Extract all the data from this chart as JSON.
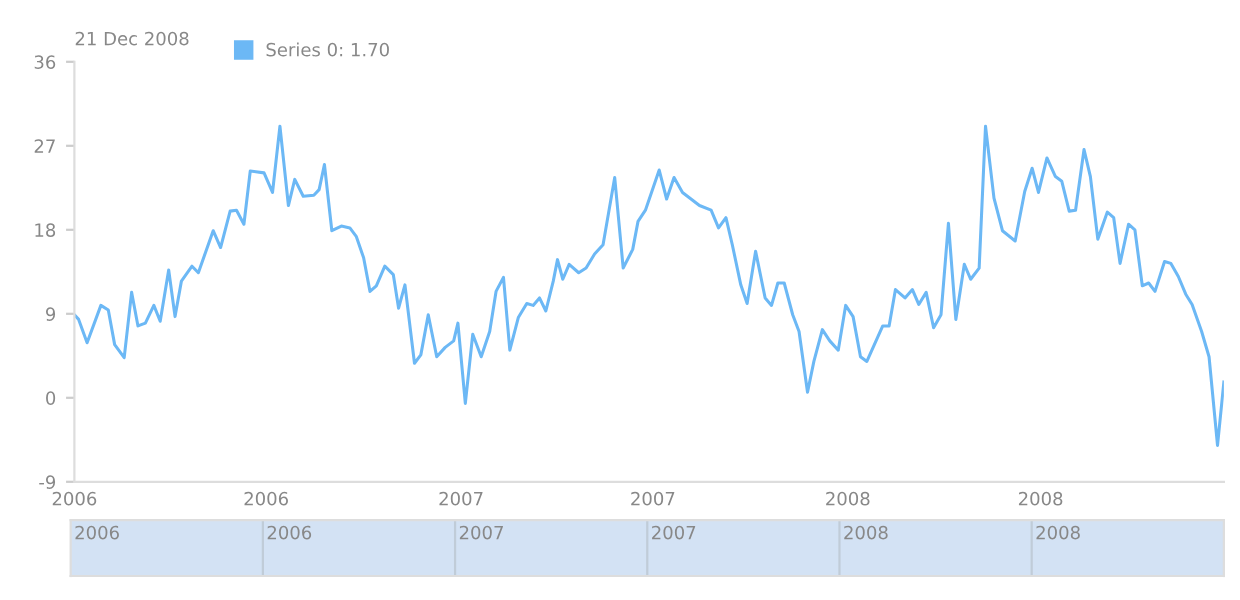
{
  "chart_data": [
    {
      "type": "line",
      "title": "21 Dec 2008",
      "x": [
        "2006-01-01",
        "2006-01-05",
        "2006-01-13",
        "2006-01-26",
        "2006-02-02",
        "2006-02-08",
        "2006-02-17",
        "2006-02-24",
        "2006-03-02",
        "2006-03-09",
        "2006-03-17",
        "2006-03-23",
        "2006-03-31",
        "2006-04-06",
        "2006-04-12",
        "2006-04-22",
        "2006-04-28",
        "2006-05-12",
        "2006-05-19",
        "2006-05-28",
        "2006-06-03",
        "2006-06-10",
        "2006-06-16",
        "2006-06-29",
        "2006-07-07",
        "2006-07-14",
        "2006-07-22",
        "2006-07-28",
        "2006-08-05",
        "2006-08-15",
        "2006-08-20",
        "2006-08-25",
        "2006-09-01",
        "2006-09-10",
        "2006-09-18",
        "2006-09-24",
        "2006-10-01",
        "2006-10-07",
        "2006-10-13",
        "2006-10-21",
        "2006-10-29",
        "2006-11-03",
        "2006-11-09",
        "2006-11-18",
        "2006-11-24",
        "2006-12-01",
        "2006-12-09",
        "2006-12-17",
        "2006-12-25",
        "2006-12-29",
        "2007-01-05",
        "2007-01-12",
        "2007-01-20",
        "2007-01-28",
        "2007-02-03",
        "2007-02-10",
        "2007-02-16",
        "2007-02-24",
        "2007-03-04",
        "2007-03-10",
        "2007-03-16",
        "2007-03-22",
        "2007-03-29",
        "2007-04-02",
        "2007-04-07",
        "2007-04-13",
        "2007-04-22",
        "2007-04-29",
        "2007-05-07",
        "2007-05-15",
        "2007-05-26",
        "2007-06-03",
        "2007-06-12",
        "2007-06-17",
        "2007-06-24",
        "2007-07-07",
        "2007-07-14",
        "2007-07-21",
        "2007-07-29",
        "2007-08-14",
        "2007-08-25",
        "2007-09-01",
        "2007-09-08",
        "2007-09-14",
        "2007-09-22",
        "2007-09-28",
        "2007-10-06",
        "2007-10-15",
        "2007-10-21",
        "2007-10-27",
        "2007-11-02",
        "2007-11-10",
        "2007-11-16",
        "2007-11-24",
        "2007-11-30",
        "2007-12-08",
        "2007-12-15",
        "2007-12-23",
        "2007-12-30",
        "2008-01-06",
        "2008-01-13",
        "2008-01-19",
        "2008-02-03",
        "2008-02-09",
        "2008-02-15",
        "2008-02-24",
        "2008-03-02",
        "2008-03-08",
        "2008-03-15",
        "2008-03-22",
        "2008-03-29",
        "2008-04-05",
        "2008-04-12",
        "2008-04-20",
        "2008-04-26",
        "2008-05-04",
        "2008-05-10",
        "2008-05-18",
        "2008-05-26",
        "2008-06-07",
        "2008-06-16",
        "2008-06-23",
        "2008-06-29",
        "2008-07-07",
        "2008-07-15",
        "2008-07-21",
        "2008-07-28",
        "2008-08-03",
        "2008-08-11",
        "2008-08-17",
        "2008-08-24",
        "2008-09-02",
        "2008-09-08",
        "2008-09-14",
        "2008-09-22",
        "2008-09-28",
        "2008-10-05",
        "2008-10-11",
        "2008-10-17",
        "2008-10-26",
        "2008-11-01",
        "2008-11-08",
        "2008-11-15",
        "2008-11-21",
        "2008-11-30",
        "2008-12-07",
        "2008-12-15",
        "2008-12-21"
      ],
      "series": [
        {
          "name": "Series 0: 1.70",
          "color": "#6cb8f5",
          "values": [
            8.9,
            8.4,
            5.9,
            9.9,
            9.4,
            5.7,
            4.3,
            11.3,
            7.7,
            8.0,
            9.9,
            8.2,
            13.7,
            8.7,
            12.5,
            14.1,
            13.4,
            17.9,
            16.1,
            20.0,
            20.1,
            18.6,
            24.3,
            24.1,
            22.0,
            29.1,
            20.6,
            23.4,
            21.6,
            21.7,
            22.3,
            25.0,
            17.9,
            18.4,
            18.2,
            17.3,
            15.0,
            11.4,
            12.0,
            14.1,
            13.2,
            9.6,
            12.1,
            3.7,
            4.6,
            8.9,
            4.4,
            5.4,
            6.1,
            8.0,
            -0.6,
            6.8,
            4.4,
            7.1,
            11.4,
            12.9,
            5.1,
            8.6,
            10.1,
            9.9,
            10.7,
            9.3,
            12.5,
            14.8,
            12.7,
            14.3,
            13.4,
            13.9,
            15.4,
            16.4,
            23.6,
            13.9,
            15.9,
            18.9,
            20.1,
            24.4,
            21.3,
            23.6,
            22.0,
            20.6,
            20.1,
            18.2,
            19.3,
            16.4,
            12.1,
            10.1,
            15.7,
            10.7,
            9.9,
            12.3,
            12.3,
            8.9,
            7.1,
            0.6,
            3.9,
            7.3,
            6.1,
            5.1,
            9.9,
            8.7,
            4.4,
            3.9,
            7.7,
            7.7,
            11.6,
            10.7,
            11.6,
            10.0,
            11.3,
            7.5,
            8.9,
            18.7,
            8.4,
            14.3,
            12.7,
            13.9,
            29.1,
            21.4,
            17.9,
            16.8,
            22.1,
            24.6,
            22.0,
            25.7,
            23.7,
            23.2,
            20.0,
            20.1,
            26.6,
            23.7,
            17.0,
            19.9,
            19.3,
            14.4,
            18.6,
            18.0,
            12.0,
            12.3,
            11.4,
            14.6,
            14.4,
            13.0,
            11.1,
            10.0,
            7.1,
            4.4,
            -5.1,
            1.7
          ]
        }
      ],
      "xlim": [
        "2006-01-01",
        "2008-12-21"
      ],
      "xticks": [
        {
          "value": "2006-01-01",
          "label": "2006"
        },
        {
          "value": "2006-07-01",
          "label": "2006"
        },
        {
          "value": "2007-01-01",
          "label": "2007"
        },
        {
          "value": "2007-07-01",
          "label": "2007"
        },
        {
          "value": "2008-01-01",
          "label": "2008"
        },
        {
          "value": "2008-07-01",
          "label": "2008"
        }
      ],
      "ylim": [
        -9,
        36
      ],
      "yticks": [
        -9,
        0,
        9,
        18,
        27,
        36
      ],
      "legend": "top left",
      "grid": false,
      "marker": "none",
      "line_style": "solid"
    },
    {
      "type": "other",
      "annotations": [
        "2006",
        "2006",
        "2007",
        "2007",
        "2008",
        "2008"
      ]
    }
  ]
}
